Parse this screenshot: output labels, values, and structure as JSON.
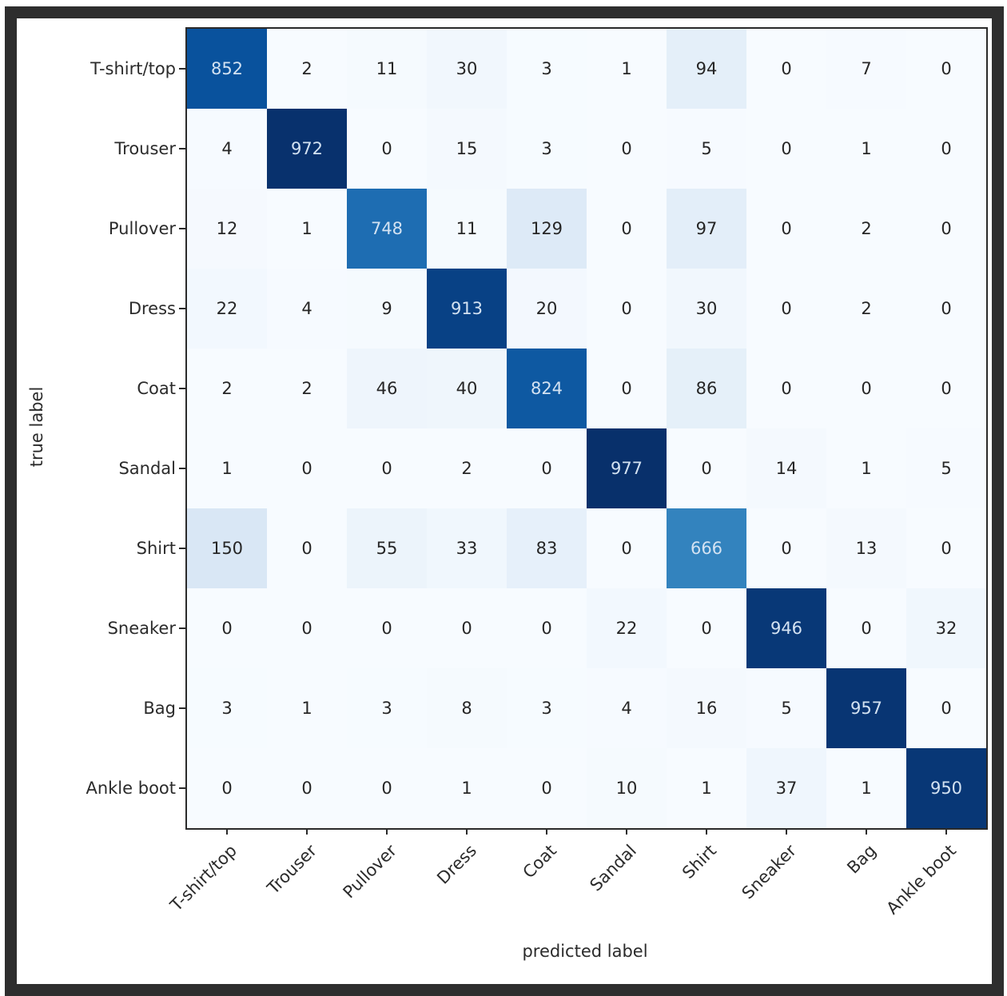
{
  "figure": {
    "xlabel": "predicted label",
    "ylabel": "true label"
  },
  "chart_data": {
    "type": "heatmap",
    "title": "",
    "xlabel": "predicted label",
    "ylabel": "true label",
    "colormap": "Blues",
    "vmin": 0,
    "vmax": 977,
    "grid": false,
    "categories": [
      "T-shirt/top",
      "Trouser",
      "Pullover",
      "Dress",
      "Coat",
      "Sandal",
      "Shirt",
      "Sneaker",
      "Bag",
      "Ankle boot"
    ],
    "matrix": [
      [
        852,
        2,
        11,
        30,
        3,
        1,
        94,
        0,
        7,
        0
      ],
      [
        4,
        972,
        0,
        15,
        3,
        0,
        5,
        0,
        1,
        0
      ],
      [
        12,
        1,
        748,
        11,
        129,
        0,
        97,
        0,
        2,
        0
      ],
      [
        22,
        4,
        9,
        913,
        20,
        0,
        30,
        0,
        2,
        0
      ],
      [
        2,
        2,
        46,
        40,
        824,
        0,
        86,
        0,
        0,
        0
      ],
      [
        1,
        0,
        0,
        2,
        0,
        977,
        0,
        14,
        1,
        5
      ],
      [
        150,
        0,
        55,
        33,
        83,
        0,
        666,
        0,
        13,
        0
      ],
      [
        0,
        0,
        0,
        0,
        0,
        22,
        0,
        946,
        0,
        32
      ],
      [
        3,
        1,
        3,
        8,
        3,
        4,
        16,
        5,
        957,
        0
      ],
      [
        0,
        0,
        0,
        1,
        0,
        10,
        1,
        37,
        1,
        950
      ]
    ]
  },
  "colors": {
    "frame": "#2e2e2e",
    "background": "#ffffff",
    "axis": "#2a2a2a",
    "text_dark": "#262626",
    "text_light": "#d3e2f2"
  }
}
